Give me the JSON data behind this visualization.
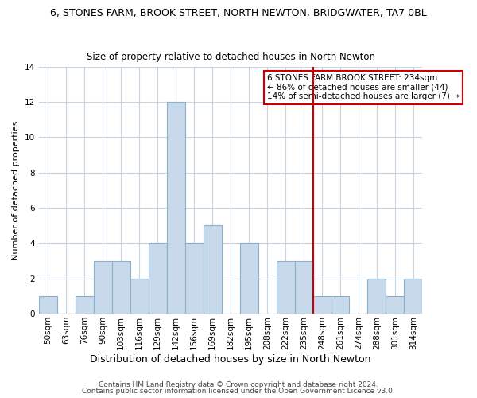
{
  "title": "6, STONES FARM, BROOK STREET, NORTH NEWTON, BRIDGWATER, TA7 0BL",
  "subtitle": "Size of property relative to detached houses in North Newton",
  "xlabel": "Distribution of detached houses by size in North Newton",
  "ylabel": "Number of detached properties",
  "bar_labels": [
    "50sqm",
    "63sqm",
    "76sqm",
    "90sqm",
    "103sqm",
    "116sqm",
    "129sqm",
    "142sqm",
    "156sqm",
    "169sqm",
    "182sqm",
    "195sqm",
    "208sqm",
    "222sqm",
    "235sqm",
    "248sqm",
    "261sqm",
    "274sqm",
    "288sqm",
    "301sqm",
    "314sqm"
  ],
  "bar_heights": [
    1,
    0,
    1,
    3,
    3,
    2,
    4,
    12,
    4,
    5,
    0,
    4,
    0,
    3,
    3,
    1,
    1,
    0,
    2,
    1,
    2
  ],
  "bar_color": "#c8d9eb",
  "bar_edgecolor": "#8ab0cc",
  "vline_index": 14,
  "vline_color": "#cc0000",
  "ylim": [
    0,
    14
  ],
  "yticks": [
    0,
    2,
    4,
    6,
    8,
    10,
    12,
    14
  ],
  "annotation_title": "6 STONES FARM BROOK STREET: 234sqm",
  "annotation_line1": "← 86% of detached houses are smaller (44)",
  "annotation_line2": "14% of semi-detached houses are larger (7) →",
  "annotation_box_color": "#ffffff",
  "annotation_box_edgecolor": "#cc0000",
  "footnote1": "Contains HM Land Registry data © Crown copyright and database right 2024.",
  "footnote2": "Contains public sector information licensed under the Open Government Licence v3.0.",
  "background_color": "#ffffff",
  "grid_color": "#c8d4e0",
  "title_fontsize": 9,
  "subtitle_fontsize": 8.5,
  "xlabel_fontsize": 9,
  "ylabel_fontsize": 8,
  "tick_fontsize": 7.5,
  "annotation_fontsize": 7.5,
  "footnote_fontsize": 6.5
}
